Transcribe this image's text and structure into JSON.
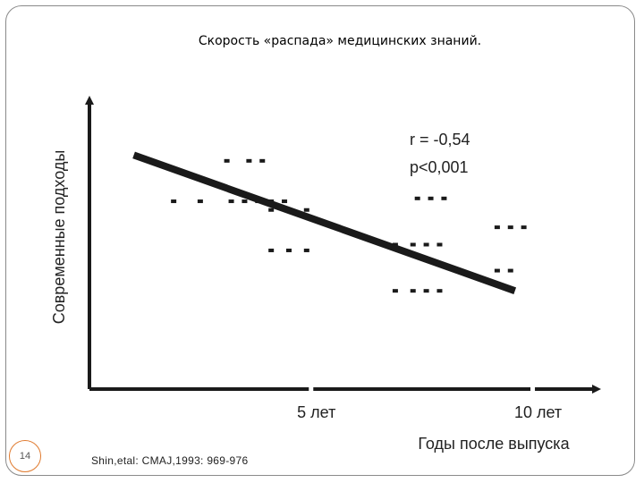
{
  "slide": {
    "title": "Скорость «распада» медицинских знаний.",
    "page_number": "14",
    "citation": "Shin,etal: CMAJ,1993: 969-976"
  },
  "colors": {
    "frame": "#8a8a8a",
    "page_circle": "#e07a2e",
    "ink": "#1a1a1a"
  },
  "chart_data": {
    "type": "scatter",
    "xlabel": "Годы после выпуска",
    "ylabel": "Современные подходы",
    "x_ticks": [
      {
        "value": 5,
        "label": "5 лет"
      },
      {
        "value": 10,
        "label": "10 лет"
      }
    ],
    "annotations": [
      "r = -0,54",
      "p<0,001"
    ],
    "xlim": [
      0,
      11.2
    ],
    "ylim": [
      0,
      10
    ],
    "grid": false,
    "trend_line": {
      "start": [
        1,
        8.1
      ],
      "end": [
        9.6,
        3.4
      ]
    },
    "points": [
      [
        3.1,
        7.9
      ],
      [
        3.6,
        7.9
      ],
      [
        3.9,
        7.9
      ],
      [
        1.9,
        6.5
      ],
      [
        2.5,
        6.5
      ],
      [
        3.2,
        6.5
      ],
      [
        3.5,
        6.5
      ],
      [
        3.8,
        6.5
      ],
      [
        4.1,
        6.5
      ],
      [
        4.4,
        6.5
      ],
      [
        4.1,
        6.2
      ],
      [
        4.5,
        6.2
      ],
      [
        4.9,
        6.2
      ],
      [
        7.4,
        6.6
      ],
      [
        7.7,
        6.6
      ],
      [
        8.0,
        6.6
      ],
      [
        4.1,
        4.8
      ],
      [
        4.5,
        4.8
      ],
      [
        4.9,
        4.8
      ],
      [
        6.9,
        5.0
      ],
      [
        7.3,
        5.0
      ],
      [
        7.6,
        5.0
      ],
      [
        7.9,
        5.0
      ],
      [
        9.2,
        5.6
      ],
      [
        9.5,
        5.6
      ],
      [
        9.8,
        5.6
      ],
      [
        9.2,
        4.1
      ],
      [
        9.5,
        4.1
      ],
      [
        6.9,
        3.4
      ],
      [
        7.3,
        3.4
      ],
      [
        7.6,
        3.4
      ],
      [
        7.9,
        3.4
      ]
    ]
  }
}
